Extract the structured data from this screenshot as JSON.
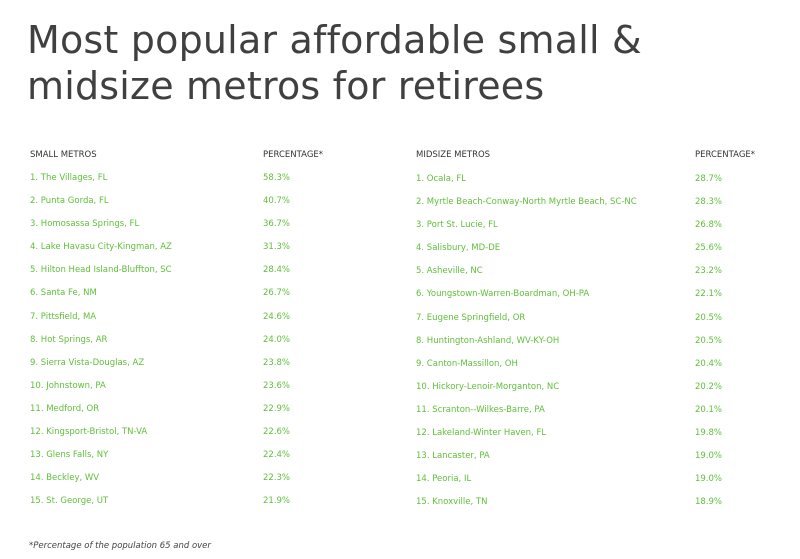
{
  "title": "Most popular affordable small & midsize metros for retirees",
  "small_table": {
    "header_name": "SMALL METROS",
    "header_pct": "PERCENTAGE*",
    "rows": [
      {
        "name": "1. The Villages, FL",
        "pct": "58.3%"
      },
      {
        "name": "2. Punta Gorda, FL",
        "pct": "40.7%"
      },
      {
        "name": "3. Homosassa Springs, FL",
        "pct": "36.7%"
      },
      {
        "name": "4. Lake Havasu City-Kingman, AZ",
        "pct": "31.3%"
      },
      {
        "name": "5. Hilton Head Island-Bluffton, SC",
        "pct": "28.4%"
      },
      {
        "name": "6. Santa Fe, NM",
        "pct": "26.7%"
      },
      {
        "name": "7. Pittsfield, MA",
        "pct": "24.6%"
      },
      {
        "name": "8. Hot Springs, AR",
        "pct": "24.0%"
      },
      {
        "name": "9. Sierra Vista-Douglas, AZ",
        "pct": "23.8%"
      },
      {
        "name": "10. Johnstown, PA",
        "pct": "23.6%"
      },
      {
        "name": "11. Medford, OR",
        "pct": "22.9%"
      },
      {
        "name": "12. Kingsport-Bristol, TN-VA",
        "pct": "22.6%"
      },
      {
        "name": "13. Glens Falls, NY",
        "pct": "22.4%"
      },
      {
        "name": "14. Beckley, WV",
        "pct": "22.3%"
      },
      {
        "name": "15. St. George, UT",
        "pct": "21.9%"
      }
    ]
  },
  "midsize_table": {
    "header_name": "MIDSIZE METROS",
    "header_pct": "PERCENTAGE*",
    "rows": [
      {
        "name": "1. Ocala, FL",
        "pct": "28.7%"
      },
      {
        "name": "2. Myrtle Beach-Conway-North Myrtle Beach, SC-NC",
        "pct": "28.3%"
      },
      {
        "name": "3. Port St. Lucie, FL",
        "pct": "26.8%"
      },
      {
        "name": "4. Salisbury, MD-DE",
        "pct": "25.6%"
      },
      {
        "name": "5. Asheville, NC",
        "pct": "23.2%"
      },
      {
        "name": "6. Youngstown-Warren-Boardman, OH-PA",
        "pct": "22.1%"
      },
      {
        "name": "7. Eugene Springfield, OR",
        "pct": "20.5%"
      },
      {
        "name": "8. Huntington-Ashland, WV-KY-OH",
        "pct": "20.5%"
      },
      {
        "name": "9. Canton-Massillon, OH",
        "pct": "20.4%"
      },
      {
        "name": "10. Hickory-Lenoir-Morganton, NC",
        "pct": "20.2%"
      },
      {
        "name": "11. Scranton--Wilkes-Barre, PA",
        "pct": "20.1%"
      },
      {
        "name": "12. Lakeland-Winter Haven, FL",
        "pct": "19.8%"
      },
      {
        "name": "13. Lancaster, PA",
        "pct": "19.0%"
      },
      {
        "name": "14. Peoria, IL",
        "pct": "19.0%"
      },
      {
        "name": "15. Knoxville, TN",
        "pct": "18.9%"
      }
    ]
  },
  "footnote": "*Percentage of the population 65 and over",
  "colors": {
    "title": "#404040",
    "value_green": "#5fbf3a",
    "header": "#333333"
  }
}
